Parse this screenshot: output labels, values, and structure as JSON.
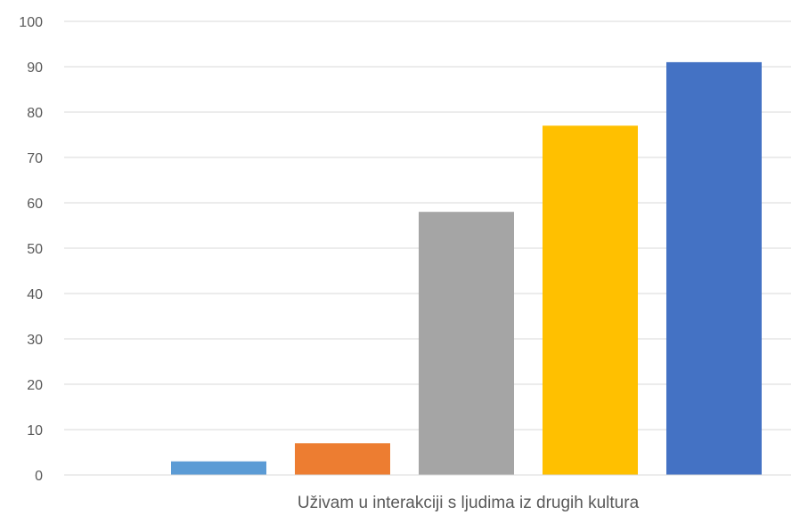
{
  "chart_data": {
    "type": "bar",
    "categories": [
      "Uživam u interakciji s ljudima iz drugih kultura"
    ],
    "series": [
      {
        "values": [
          3
        ],
        "color": "#5B9BD5"
      },
      {
        "values": [
          7
        ],
        "color": "#ED7D31"
      },
      {
        "values": [
          58
        ],
        "color": "#A5A5A5"
      },
      {
        "values": [
          77
        ],
        "color": "#FFC000"
      },
      {
        "values": [
          91
        ],
        "color": "#4472C4"
      }
    ],
    "yticks": [
      "0",
      "10",
      "20",
      "30",
      "40",
      "50",
      "60",
      "70",
      "80",
      "90",
      "100"
    ],
    "ylim": [
      0,
      100
    ],
    "grid": true,
    "legend": "none"
  }
}
